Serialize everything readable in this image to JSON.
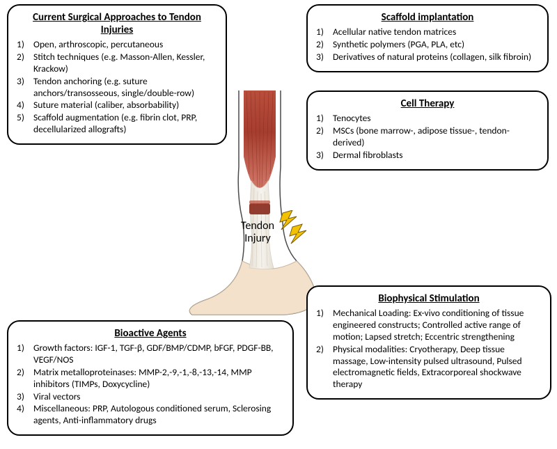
{
  "background_color": "#ffffff",
  "panel_style": {
    "border_color": "#000000",
    "border_width": 2,
    "border_radius": 18,
    "fill": "#ffffff",
    "title_fontsize": 15,
    "body_fontsize": 13.5
  },
  "center": {
    "label": "Tendon Injury",
    "tendon_colors": {
      "muscle_red": "#a63d2e",
      "muscle_light": "#d88071",
      "injury_band": "#8a2d1f",
      "tendon_white": "#f4f2ef",
      "tendon_stripe": "#e0d9cf",
      "foot_fill": "#f3e1cc",
      "outline": "#4a4a4a"
    },
    "bolt_color": "#f2c200",
    "bolt_stroke": "#7a5c00"
  },
  "panels": {
    "surgical": {
      "title": "Current Surgical Approaches to Tendon Injuries",
      "items": [
        "Open, arthroscopic, percutaneous",
        "Stitch techniques (e.g. Masson-Allen, Kessler, Krackow)",
        "Tendon anchoring (e.g. suture anchors/transosseous, single/double-row)",
        "Suture material (caliber, absorbability)",
        "Scaffold augmentation (e.g. fibrin clot, PRP, decellularized allografts)"
      ]
    },
    "scaffold": {
      "title": "Scaffold implantation",
      "items": [
        "Acellular native tendon matrices",
        "Synthetic polymers (PGA, PLA, etc)",
        "Derivatives of natural proteins (collagen, silk fibroin)"
      ]
    },
    "cell": {
      "title": "Cell Therapy",
      "items": [
        "Tenocytes",
        "MSCs (bone marrow-, adipose tissue-, tendon-derived)",
        "Dermal fibroblasts"
      ]
    },
    "bioactive": {
      "title": "Bioactive Agents",
      "items": [
        "Growth factors: IGF-1, TGF-β, GDF/BMP/CDMP, bFGF, PDGF-BB, VEGF/NOS",
        "Matrix metalloproteinases: MMP-2,-9,-1,-8,-13,-14, MMP inhibitors (TIMPs, Doxycycline)",
        "Viral vectors",
        "Miscellaneous: PRP, Autologous conditioned serum, Sclerosing agents, Anti-inflammatory drugs"
      ]
    },
    "biophys": {
      "title": "Biophysical Stimulation",
      "items": [
        "Mechanical Loading: Ex-vivo conditioning of tissue engineered constructs; Controlled active range of motion; Lapsed stretch; Eccentric strengthening",
        "Physical modalities: Cryotherapy, Deep tissue massage, Low-intensity pulsed ultrasound, Pulsed electromagnetic fields, Extracorporeal shockwave therapy"
      ]
    }
  }
}
